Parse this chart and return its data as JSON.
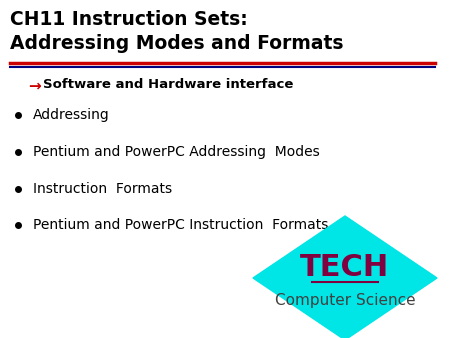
{
  "title_line1": "CH11 Instruction Sets:",
  "title_line2": "Addressing Modes and Formats",
  "subtitle_arrow": "→",
  "subtitle_text": "Software and Hardware interface",
  "bullet_items": [
    "Addressing",
    "Pentium and PowerPC Addressing  Modes",
    "Instruction  Formats",
    "Pentium and PowerPC Instruction  Formats"
  ],
  "tech_text": "TECH",
  "cs_text": "Computer Science",
  "bg_color": "#ffffff",
  "title_color": "#000000",
  "subtitle_color": "#000000",
  "arrow_color": "#cc0000",
  "bullet_color": "#000000",
  "separator_red": "#cc0000",
  "separator_blue": "#000080",
  "diamond_color": "#00e5e5",
  "tech_color": "#800040",
  "cs_color": "#404040"
}
